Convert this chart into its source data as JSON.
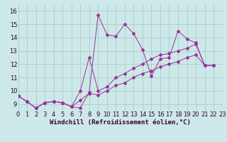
{
  "xlabel": "Windchill (Refroidissement éolien,°C)",
  "bg_color": "#cde8e8",
  "grid_color": "#a8cccc",
  "line_color": "#993399",
  "xlim": [
    0,
    23
  ],
  "ylim": [
    8.5,
    16.5
  ],
  "xticks": [
    0,
    1,
    2,
    3,
    4,
    5,
    6,
    7,
    8,
    9,
    10,
    11,
    12,
    13,
    14,
    15,
    16,
    17,
    18,
    19,
    20,
    21,
    22,
    23
  ],
  "yticks": [
    9,
    10,
    11,
    12,
    13,
    14,
    15,
    16
  ],
  "tick_labelsize": 6,
  "series": [
    [
      9.6,
      9.2,
      8.7,
      9.1,
      9.2,
      9.1,
      8.8,
      8.7,
      9.9,
      15.7,
      14.2,
      14.1,
      15.0,
      14.3,
      13.1,
      11.1,
      12.4,
      12.5,
      14.5,
      13.9,
      13.6,
      11.9,
      11.9
    ],
    [
      9.6,
      9.2,
      8.7,
      9.1,
      9.2,
      9.1,
      8.8,
      10.0,
      12.5,
      10.0,
      10.3,
      11.0,
      11.3,
      11.7,
      12.0,
      12.4,
      12.7,
      12.8,
      13.0,
      13.2,
      13.5,
      11.9,
      11.9
    ],
    [
      9.6,
      9.2,
      8.7,
      9.1,
      9.2,
      9.1,
      8.8,
      9.3,
      9.8,
      9.7,
      10.0,
      10.4,
      10.6,
      11.0,
      11.3,
      11.5,
      11.8,
      12.0,
      12.2,
      12.5,
      12.7,
      11.9,
      11.9
    ]
  ],
  "xlabel_fontsize": 6.5,
  "xlabel_color": "#330033",
  "lw": 0.7,
  "ms": 2.0
}
